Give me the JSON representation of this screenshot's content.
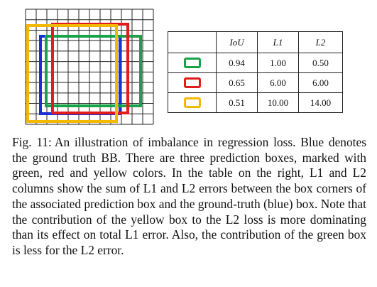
{
  "illustration": {
    "grid_columns": 12,
    "grid_rows": 11,
    "boxes": [
      {
        "name": "ground-truth",
        "color": "#1b2fd6"
      },
      {
        "name": "green",
        "color": "#16a34a"
      },
      {
        "name": "red",
        "color": "#e21b1b"
      },
      {
        "name": "yellow",
        "color": "#f5b800"
      }
    ]
  },
  "table": {
    "headers": [
      "",
      "IoU",
      "L1",
      "L2"
    ],
    "rows": [
      {
        "swatch_color": "#16a34a",
        "iou": "0.94",
        "l1": "1.00",
        "l2": "0.50"
      },
      {
        "swatch_color": "#e21b1b",
        "iou": "0.65",
        "l1": "6.00",
        "l2": "6.00"
      },
      {
        "swatch_color": "#f5b800",
        "iou": "0.51",
        "l1": "10.00",
        "l2": "14.00"
      }
    ]
  },
  "caption": {
    "label": "Fig. 11:",
    "text": "An illustration of imbalance in regression loss. Blue denotes the ground truth BB. There are three prediction boxes, marked with green, red and yellow colors. In the table on the right, L1 and L2 columns show the sum of L1 and L2 errors between the box corners of the associated prediction box and the ground-truth (blue) box. Note that the contribution of the yellow box to the L2 loss is more dominating than its effect on total L1 error. Also, the contribution of the green box is less for the L2 error."
  }
}
